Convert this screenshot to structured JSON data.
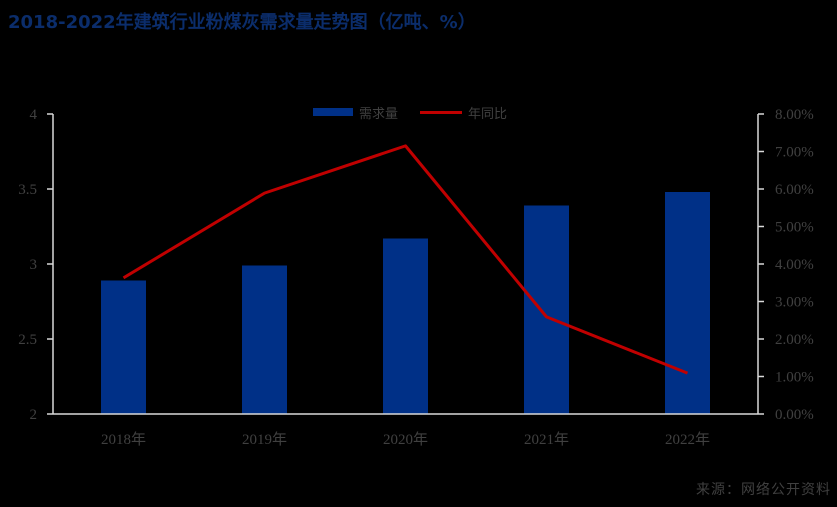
{
  "title": "2018-2022年建筑行业粉煤灰需求量走势图（亿吨、%）",
  "source": "来源：网络公开资料",
  "colors": {
    "bar": "#003087",
    "line": "#C00000",
    "title": "#0B2D6B",
    "axis": "#D9D9D9",
    "tick_label": "#404040",
    "background": "#000000"
  },
  "legend": [
    {
      "label": "需求量",
      "type": "bar"
    },
    {
      "label": "年同比",
      "type": "line"
    }
  ],
  "chart_data": {
    "type": "bar",
    "combo": "bar+line (dual axis)",
    "title": "2018-2022年建筑行业粉煤灰需求量走势图（亿吨、%）",
    "categories": [
      "2018年",
      "2019年",
      "2020年",
      "2021年",
      "2022年"
    ],
    "series": [
      {
        "name": "需求量",
        "type": "bar",
        "axis": "left",
        "values": [
          2.89,
          2.99,
          3.17,
          3.39,
          3.48
        ]
      },
      {
        "name": "年同比",
        "type": "line",
        "axis": "right",
        "values": [
          3.63,
          5.89,
          7.15,
          2.59,
          1.09
        ],
        "unit": "%"
      }
    ],
    "xlabel": "",
    "ylabel": "",
    "ylim": [
      2,
      4
    ],
    "y_ticks": [
      "2",
      "2.5",
      "3",
      "3.5",
      "4"
    ],
    "y2lim": [
      0,
      8
    ],
    "y2_ticks": [
      "0.00%",
      "1.00%",
      "2.00%",
      "3.00%",
      "4.00%",
      "5.00%",
      "6.00%",
      "7.00%",
      "8.00%"
    ],
    "grid": false,
    "legend_position": "top"
  }
}
